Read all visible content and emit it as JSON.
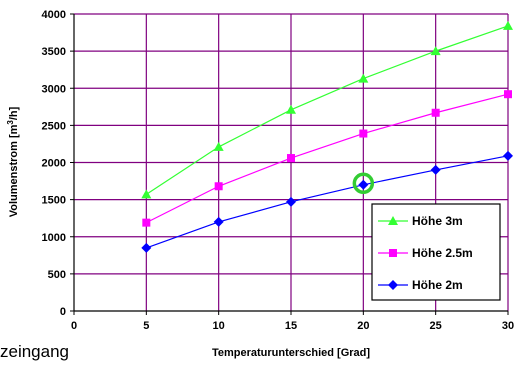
{
  "chart_data": {
    "type": "line",
    "title": "",
    "xlabel": "Temperaturunterschied [Grad]",
    "ylabel_parts": [
      "Volumenstrom [m",
      "3",
      "/h]"
    ],
    "xlim": [
      0,
      30
    ],
    "ylim": [
      0,
      4000
    ],
    "x_ticks": [
      0,
      5,
      10,
      15,
      20,
      25,
      30
    ],
    "y_ticks": [
      0,
      500,
      1000,
      1500,
      2000,
      2500,
      3000,
      3500,
      4000
    ],
    "grid": true,
    "legend_position": "bottom-right",
    "x": [
      5,
      10,
      15,
      20,
      25,
      30
    ],
    "series": [
      {
        "name": "Höhe 3m",
        "color": "#33ff33",
        "marker": "triangle",
        "values": [
          1570,
          2210,
          2710,
          3130,
          3500,
          3840
        ]
      },
      {
        "name": "Höhe 2.5m",
        "color": "#ff00ff",
        "marker": "square",
        "values": [
          1190,
          1680,
          2060,
          2390,
          2670,
          2920
        ]
      },
      {
        "name": "Höhe 2m",
        "color": "#0000ff",
        "marker": "diamond",
        "values": [
          850,
          1200,
          1470,
          1700,
          1900,
          2090
        ]
      }
    ],
    "highlight": {
      "x": 20,
      "y": 1720,
      "color": "#33cc33"
    }
  },
  "cut_text": "zeingang"
}
